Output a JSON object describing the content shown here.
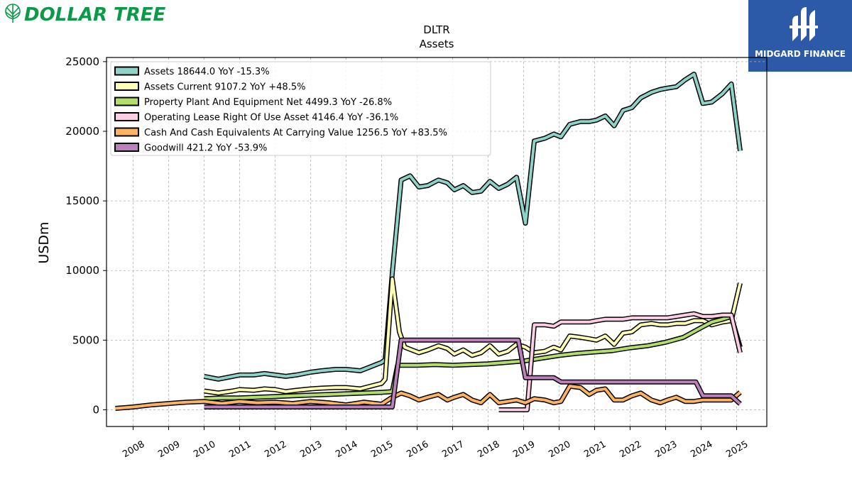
{
  "branding": {
    "left_logo_text": "DOLLAR TREE",
    "left_logo_color": "#0a9a48",
    "right_logo_text": "MIDGARD FINANCE",
    "right_logo_bg": "#2d5aa8"
  },
  "chart_data": {
    "type": "line",
    "title": "DLTR",
    "subtitle": "Assets",
    "xlabel": "",
    "ylabel": "USDm",
    "xlim": [
      2007.25,
      2025.85
    ],
    "ylim": [
      -1200,
      25300
    ],
    "yticks": [
      0,
      5000,
      10000,
      15000,
      20000,
      25000
    ],
    "xticks": [
      "2008",
      "2009",
      "2010",
      "2011",
      "2012",
      "2013",
      "2014",
      "2015",
      "2016",
      "2017",
      "2018",
      "2019",
      "2020",
      "2021",
      "2022",
      "2023",
      "2024",
      "2025"
    ],
    "grid": true,
    "legend_position": "top-left",
    "series": [
      {
        "name": "Assets",
        "legend_label": "Assets  18644.0 YoY -15.3%",
        "color": "#8dd3c7",
        "points": [
          [
            2010.0,
            2400
          ],
          [
            2010.4,
            2200
          ],
          [
            2010.8,
            2400
          ],
          [
            2011.0,
            2500
          ],
          [
            2011.4,
            2500
          ],
          [
            2011.7,
            2600
          ],
          [
            2012.0,
            2500
          ],
          [
            2012.3,
            2400
          ],
          [
            2012.6,
            2500
          ],
          [
            2013.0,
            2700
          ],
          [
            2013.3,
            2800
          ],
          [
            2013.7,
            2900
          ],
          [
            2014.0,
            2900
          ],
          [
            2014.4,
            2800
          ],
          [
            2014.7,
            3100
          ],
          [
            2015.0,
            3400
          ],
          [
            2015.1,
            3600
          ],
          [
            2015.3,
            9800
          ],
          [
            2015.55,
            16500
          ],
          [
            2015.8,
            16800
          ],
          [
            2016.05,
            16000
          ],
          [
            2016.3,
            16100
          ],
          [
            2016.6,
            16500
          ],
          [
            2016.85,
            16300
          ],
          [
            2017.05,
            15800
          ],
          [
            2017.3,
            16100
          ],
          [
            2017.55,
            15600
          ],
          [
            2017.8,
            15700
          ],
          [
            2018.05,
            16400
          ],
          [
            2018.3,
            15900
          ],
          [
            2018.55,
            16200
          ],
          [
            2018.8,
            16700
          ],
          [
            2019.05,
            13400
          ],
          [
            2019.3,
            19300
          ],
          [
            2019.6,
            19500
          ],
          [
            2019.85,
            19800
          ],
          [
            2020.05,
            19600
          ],
          [
            2020.3,
            20500
          ],
          [
            2020.6,
            20700
          ],
          [
            2020.85,
            20700
          ],
          [
            2021.05,
            20800
          ],
          [
            2021.3,
            21100
          ],
          [
            2021.55,
            20400
          ],
          [
            2021.8,
            21500
          ],
          [
            2022.05,
            21700
          ],
          [
            2022.3,
            22400
          ],
          [
            2022.6,
            22800
          ],
          [
            2022.85,
            23000
          ],
          [
            2023.05,
            23100
          ],
          [
            2023.3,
            23200
          ],
          [
            2023.55,
            23700
          ],
          [
            2023.8,
            24100
          ],
          [
            2024.05,
            22000
          ],
          [
            2024.3,
            22100
          ],
          [
            2024.6,
            22700
          ],
          [
            2024.85,
            23400
          ],
          [
            2025.1,
            18600
          ]
        ]
      },
      {
        "name": "Assets Current",
        "legend_label": "Assets Current  9107.2 YoY +48.5%",
        "color": "#ffffb3",
        "points": [
          [
            2010.0,
            1350
          ],
          [
            2010.4,
            1200
          ],
          [
            2010.8,
            1350
          ],
          [
            2011.0,
            1450
          ],
          [
            2011.4,
            1400
          ],
          [
            2011.7,
            1500
          ],
          [
            2012.0,
            1450
          ],
          [
            2012.3,
            1300
          ],
          [
            2012.6,
            1400
          ],
          [
            2013.0,
            1500
          ],
          [
            2013.3,
            1550
          ],
          [
            2013.7,
            1600
          ],
          [
            2014.0,
            1600
          ],
          [
            2014.4,
            1500
          ],
          [
            2014.7,
            1700
          ],
          [
            2015.0,
            1900
          ],
          [
            2015.1,
            2200
          ],
          [
            2015.3,
            9400
          ],
          [
            2015.5,
            5600
          ],
          [
            2015.65,
            4500
          ],
          [
            2016.05,
            4100
          ],
          [
            2016.3,
            4300
          ],
          [
            2016.6,
            4600
          ],
          [
            2016.85,
            4400
          ],
          [
            2017.05,
            4000
          ],
          [
            2017.3,
            4300
          ],
          [
            2017.55,
            3900
          ],
          [
            2017.8,
            4100
          ],
          [
            2018.05,
            4600
          ],
          [
            2018.3,
            4000
          ],
          [
            2018.55,
            4200
          ],
          [
            2018.8,
            4700
          ],
          [
            2019.05,
            4500
          ],
          [
            2019.3,
            4100
          ],
          [
            2019.6,
            4200
          ],
          [
            2019.85,
            4500
          ],
          [
            2020.05,
            4300
          ],
          [
            2020.3,
            5300
          ],
          [
            2020.6,
            5200
          ],
          [
            2020.85,
            5100
          ],
          [
            2021.05,
            5000
          ],
          [
            2021.3,
            5300
          ],
          [
            2021.55,
            4700
          ],
          [
            2021.8,
            5500
          ],
          [
            2022.05,
            5600
          ],
          [
            2022.3,
            6100
          ],
          [
            2022.6,
            6200
          ],
          [
            2022.85,
            6100
          ],
          [
            2023.05,
            6100
          ],
          [
            2023.3,
            6200
          ],
          [
            2023.55,
            6200
          ],
          [
            2023.8,
            6400
          ],
          [
            2024.05,
            6400
          ],
          [
            2024.3,
            6100
          ],
          [
            2024.6,
            6300
          ],
          [
            2024.85,
            6400
          ],
          [
            2025.1,
            9100
          ]
        ]
      },
      {
        "name": "Property Plant And Equipment Net",
        "legend_label": "Property Plant And Equipment Net  4499.3 YoY -26.8%",
        "color": "#b3de69",
        "points": [
          [
            2010.0,
            800
          ],
          [
            2010.5,
            850
          ],
          [
            2011.0,
            850
          ],
          [
            2011.5,
            900
          ],
          [
            2012.0,
            950
          ],
          [
            2012.5,
            1000
          ],
          [
            2013.0,
            1050
          ],
          [
            2013.5,
            1100
          ],
          [
            2014.0,
            1150
          ],
          [
            2014.5,
            1200
          ],
          [
            2015.0,
            1250
          ],
          [
            2015.3,
            1300
          ],
          [
            2015.45,
            3200
          ],
          [
            2016.0,
            3200
          ],
          [
            2016.5,
            3250
          ],
          [
            2017.0,
            3200
          ],
          [
            2017.5,
            3250
          ],
          [
            2018.0,
            3300
          ],
          [
            2018.5,
            3400
          ],
          [
            2019.0,
            3500
          ],
          [
            2019.5,
            3700
          ],
          [
            2020.0,
            3900
          ],
          [
            2020.5,
            4050
          ],
          [
            2021.0,
            4150
          ],
          [
            2021.5,
            4250
          ],
          [
            2022.0,
            4450
          ],
          [
            2022.5,
            4600
          ],
          [
            2023.0,
            4850
          ],
          [
            2023.5,
            5200
          ],
          [
            2024.0,
            5900
          ],
          [
            2024.3,
            6300
          ],
          [
            2024.6,
            6500
          ],
          [
            2024.85,
            6700
          ],
          [
            2025.1,
            4500
          ]
        ]
      },
      {
        "name": "Operating Lease Right Of Use Asset",
        "legend_label": "Operating Lease Right Of Use Asset  4146.4 YoY -36.1%",
        "color": "#fccde5",
        "points": [
          [
            2018.3,
            0
          ],
          [
            2019.1,
            0
          ],
          [
            2019.3,
            6100
          ],
          [
            2019.6,
            6100
          ],
          [
            2019.85,
            6000
          ],
          [
            2020.05,
            6300
          ],
          [
            2020.3,
            6300
          ],
          [
            2020.6,
            6300
          ],
          [
            2020.85,
            6300
          ],
          [
            2021.05,
            6400
          ],
          [
            2021.3,
            6500
          ],
          [
            2021.55,
            6500
          ],
          [
            2021.8,
            6500
          ],
          [
            2022.05,
            6600
          ],
          [
            2022.3,
            6600
          ],
          [
            2022.6,
            6600
          ],
          [
            2022.85,
            6600
          ],
          [
            2023.05,
            6600
          ],
          [
            2023.3,
            6700
          ],
          [
            2023.55,
            6800
          ],
          [
            2023.8,
            6900
          ],
          [
            2024.05,
            6700
          ],
          [
            2024.3,
            6700
          ],
          [
            2024.6,
            6800
          ],
          [
            2024.85,
            6800
          ],
          [
            2025.1,
            4100
          ]
        ]
      },
      {
        "name": "Cash And Cash Equivalents At Carrying Value",
        "legend_label": "Cash And Cash Equivalents At Carrying Value  1256.5 YoY +83.5%",
        "color": "#fdb462",
        "points": [
          [
            2007.5,
            100
          ],
          [
            2008.0,
            200
          ],
          [
            2008.5,
            350
          ],
          [
            2009.0,
            450
          ],
          [
            2009.5,
            550
          ],
          [
            2010.0,
            600
          ],
          [
            2010.5,
            450
          ],
          [
            2011.0,
            600
          ],
          [
            2011.5,
            500
          ],
          [
            2012.0,
            550
          ],
          [
            2012.5,
            450
          ],
          [
            2013.0,
            600
          ],
          [
            2013.5,
            500
          ],
          [
            2014.0,
            350
          ],
          [
            2014.5,
            550
          ],
          [
            2015.0,
            400
          ],
          [
            2015.3,
            900
          ],
          [
            2015.55,
            1200
          ],
          [
            2015.8,
            1000
          ],
          [
            2016.05,
            700
          ],
          [
            2016.3,
            900
          ],
          [
            2016.6,
            1100
          ],
          [
            2016.85,
            700
          ],
          [
            2017.05,
            900
          ],
          [
            2017.3,
            1100
          ],
          [
            2017.55,
            700
          ],
          [
            2017.8,
            500
          ],
          [
            2018.05,
            1100
          ],
          [
            2018.3,
            500
          ],
          [
            2018.55,
            600
          ],
          [
            2018.8,
            700
          ],
          [
            2019.05,
            500
          ],
          [
            2019.3,
            800
          ],
          [
            2019.6,
            700
          ],
          [
            2019.85,
            500
          ],
          [
            2020.05,
            600
          ],
          [
            2020.3,
            1700
          ],
          [
            2020.6,
            1600
          ],
          [
            2020.85,
            1100
          ],
          [
            2021.05,
            1400
          ],
          [
            2021.3,
            1500
          ],
          [
            2021.55,
            700
          ],
          [
            2021.8,
            700
          ],
          [
            2022.05,
            1000
          ],
          [
            2022.3,
            1200
          ],
          [
            2022.6,
            700
          ],
          [
            2022.85,
            500
          ],
          [
            2023.05,
            700
          ],
          [
            2023.3,
            900
          ],
          [
            2023.55,
            600
          ],
          [
            2023.8,
            600
          ],
          [
            2024.05,
            700
          ],
          [
            2024.3,
            700
          ],
          [
            2024.6,
            700
          ],
          [
            2024.85,
            700
          ],
          [
            2025.1,
            1250
          ]
        ]
      },
      {
        "name": "Goodwill",
        "legend_label": "Goodwill  421.2 YoY -53.9%",
        "color": "#bc80bd",
        "points": [
          [
            2010.0,
            200
          ],
          [
            2015.3,
            200
          ],
          [
            2015.55,
            5000
          ],
          [
            2018.85,
            5000
          ],
          [
            2019.05,
            2300
          ],
          [
            2019.85,
            2300
          ],
          [
            2020.05,
            2000
          ],
          [
            2023.85,
            2000
          ],
          [
            2024.05,
            1000
          ],
          [
            2024.85,
            1000
          ],
          [
            2025.1,
            420
          ]
        ]
      }
    ]
  }
}
